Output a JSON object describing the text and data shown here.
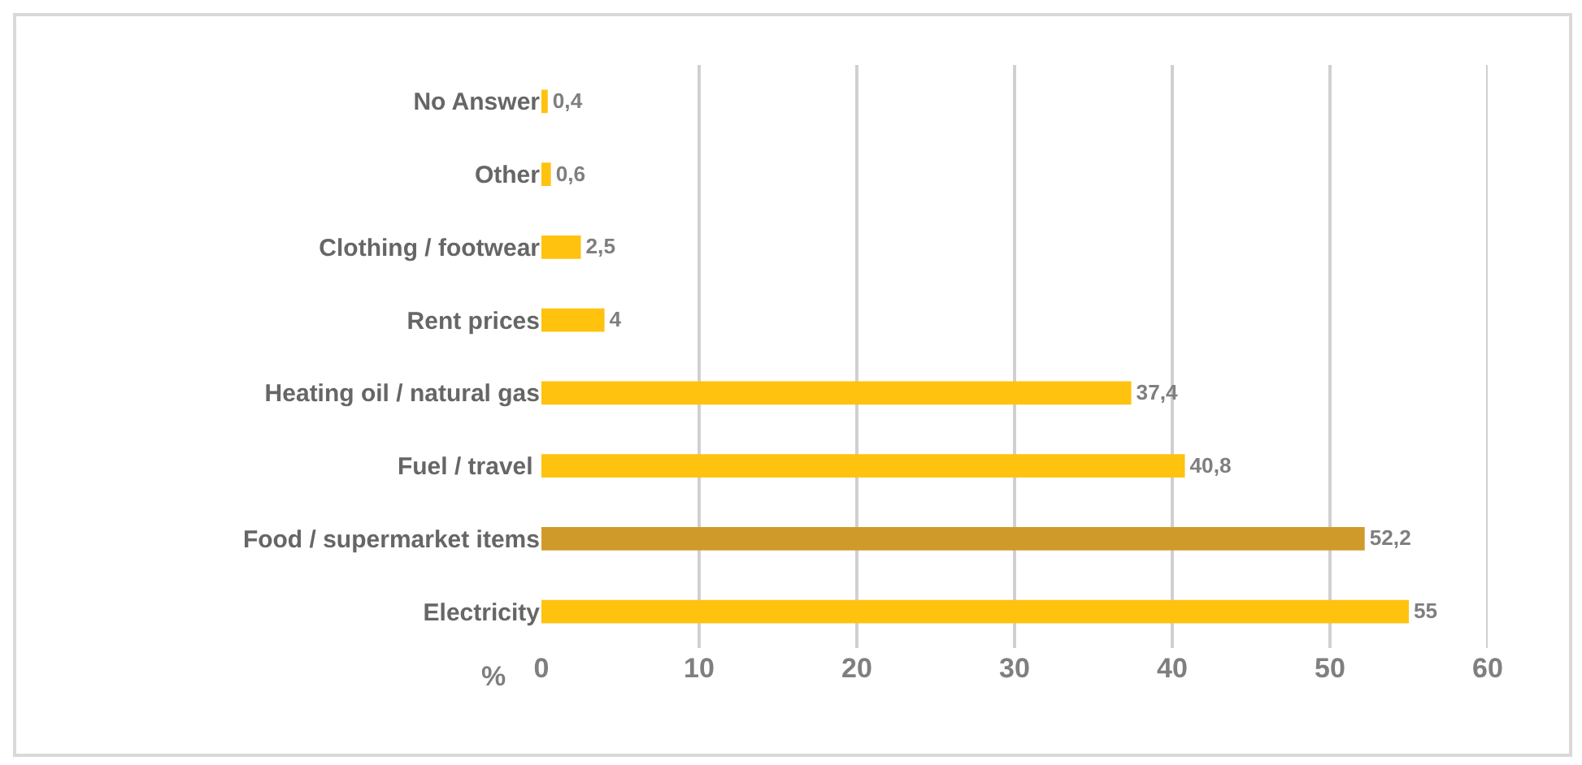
{
  "chart_data": {
    "type": "bar",
    "orientation": "horizontal",
    "xlabel": "%",
    "categories": [
      "No Answer",
      "Other",
      "Clothing / footwear",
      "Rent prices",
      "Heating oil / natural gas",
      "Fuel / travel ",
      "Food / supermarket items",
      "Electricity"
    ],
    "values": [
      0.4,
      0.6,
      2.5,
      4,
      37.4,
      40.8,
      52.2,
      55
    ],
    "value_labels": [
      "0,4",
      "0,6",
      "2,5",
      "4",
      "37,4",
      "40,8",
      "52,2",
      "55"
    ],
    "colors": [
      "#ffc20e",
      "#ffc20e",
      "#ffc20e",
      "#ffc20e",
      "#ffc20e",
      "#ffc20e",
      "#d09a2a",
      "#ffc20e"
    ],
    "xlim": [
      0,
      60
    ],
    "xticks": [
      0,
      10,
      20,
      30,
      40,
      50,
      60
    ],
    "grid": "x"
  }
}
